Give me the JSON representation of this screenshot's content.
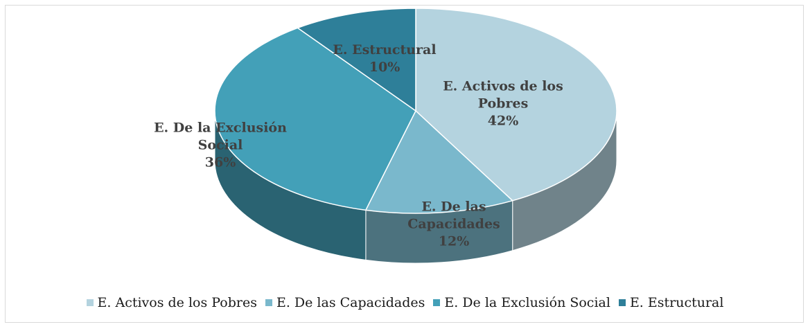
{
  "chart_data": {
    "type": "pie",
    "categories": [
      "E. Activos de los Pobres",
      "E. De las Capacidades",
      "E. De la Exclusión Social",
      "E. Estructural"
    ],
    "values": [
      42,
      12,
      36,
      10
    ],
    "value_labels": [
      "42%",
      "12%",
      "36%",
      "10%"
    ],
    "colors": [
      "#b4d3df",
      "#7ab8cc",
      "#43a0b8",
      "#2e7f99"
    ],
    "legend": "bottom"
  }
}
